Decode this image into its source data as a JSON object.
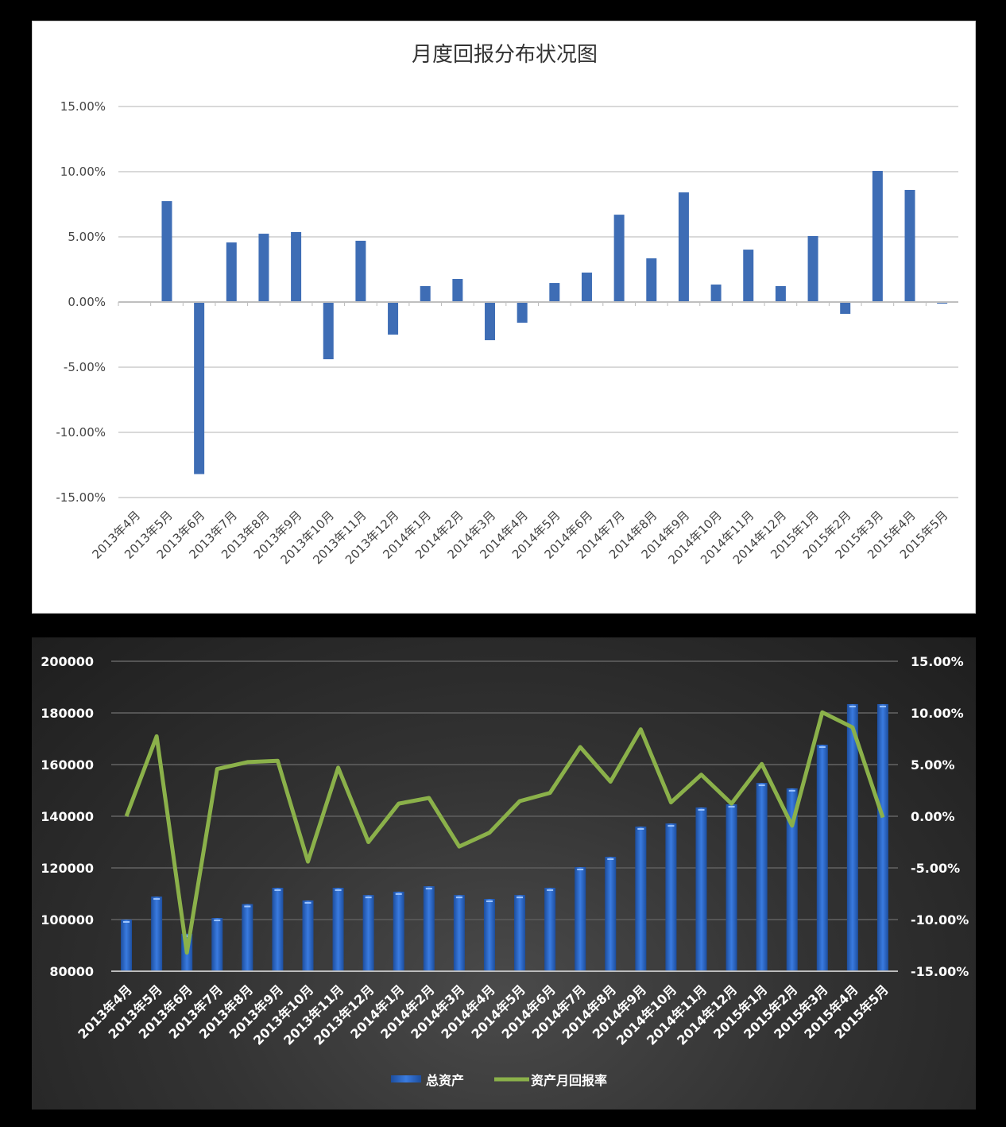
{
  "chart_data": [
    {
      "type": "bar",
      "title": "月度回报分布状况图",
      "xlabel": "",
      "ylabel": "",
      "ylim": [
        -0.15,
        0.15
      ],
      "yticks": [
        "15.00%",
        "10.00%",
        "5.00%",
        "0.00%",
        "-5.00%",
        "-10.00%",
        "-15.00%"
      ],
      "ytick_values": [
        0.15,
        0.1,
        0.05,
        0,
        -0.05,
        -0.1,
        -0.15
      ],
      "grid": true,
      "bar_color": "#3e6db5",
      "categories": [
        "2013年4月",
        "2013年5月",
        "2013年6月",
        "2013年7月",
        "2013年8月",
        "2013年9月",
        "2013年10月",
        "2013年11月",
        "2013年12月",
        "2014年1月",
        "2014年2月",
        "2014年3月",
        "2014年4月",
        "2014年5月",
        "2014年6月",
        "2014年7月",
        "2014年8月",
        "2014年9月",
        "2014年10月",
        "2014年11月",
        "2014年12月",
        "2015年1月",
        "2015年2月",
        "2015年3月",
        "2015年4月",
        "2015年5月"
      ],
      "values": [
        0,
        0.0774,
        -0.132,
        0.0457,
        0.0524,
        0.0537,
        -0.0439,
        0.047,
        -0.025,
        0.0122,
        0.0177,
        -0.0293,
        -0.0159,
        0.0146,
        0.0226,
        0.067,
        0.0335,
        0.0841,
        0.0134,
        0.0402,
        0.0122,
        0.0506,
        -0.0091,
        0.1006,
        0.086,
        -0.0012
      ]
    },
    {
      "type": "bar+line",
      "categories": [
        "2013年4月",
        "2013年5月",
        "2013年6月",
        "2013年7月",
        "2013年8月",
        "2013年9月",
        "2013年10月",
        "2013年11月",
        "2013年12月",
        "2014年1月",
        "2014年2月",
        "2014年3月",
        "2014年4月",
        "2014年5月",
        "2014年6月",
        "2014年7月",
        "2014年8月",
        "2014年9月",
        "2014年10月",
        "2014年11月",
        "2014年12月",
        "2015年1月",
        "2015年2月",
        "2015年3月",
        "2015年4月",
        "2015年5月"
      ],
      "ylim_left": [
        80000,
        200000
      ],
      "yticks_left": [
        "200000",
        "180000",
        "160000",
        "140000",
        "120000",
        "100000",
        "80000"
      ],
      "ylim_right": [
        -0.15,
        0.15
      ],
      "yticks_right": [
        "15.00%",
        "10.00%",
        "5.00%",
        "0.00%",
        "-5.00%",
        "-10.00%",
        "-15.00%"
      ],
      "legend_position": "bottom",
      "series": [
        {
          "name": "总资产",
          "type": "bar",
          "axis": "left",
          "color": "#2f6fd0",
          "values": [
            100000,
            108900,
            94500,
            100600,
            106000,
            112300,
            107400,
            112300,
            109500,
            110800,
            112900,
            109500,
            108000,
            109500,
            112300,
            120300,
            124300,
            136000,
            137200,
            143400,
            144600,
            152900,
            150800,
            167700,
            183400,
            183400
          ]
        },
        {
          "name": "资产月回报率",
          "type": "line",
          "axis": "right",
          "color": "#8bb14a",
          "values": [
            0,
            0.0774,
            -0.132,
            0.0457,
            0.0524,
            0.0537,
            -0.0439,
            0.047,
            -0.025,
            0.0122,
            0.0177,
            -0.0293,
            -0.0159,
            0.0146,
            0.0226,
            0.067,
            0.0335,
            0.0841,
            0.0134,
            0.0402,
            0.0122,
            0.0506,
            -0.0091,
            0.1006,
            0.086,
            -0.0012
          ]
        }
      ]
    }
  ]
}
